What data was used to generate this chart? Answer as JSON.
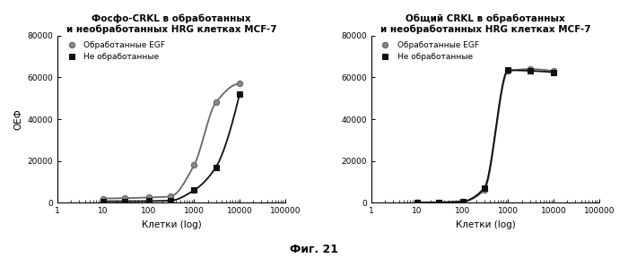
{
  "title1": "Фосфо-CRKL в обработанных\nи необработанных HRG клетках MCF-7",
  "title2": "Общий CRKL в обработанных\nи необработанных HRG клетках MCF-7",
  "xlabel": "Клетки (log)",
  "ylabel": "ОЕФ",
  "legend1": "Обработанные EGF",
  "legend2": "Не обработанные",
  "fig_label": "Фиг. 21",
  "ylim": [
    0,
    80000
  ],
  "xlim_log": [
    1,
    100000
  ],
  "chart1_egf_x": [
    10,
    30,
    100,
    300,
    1000,
    3000,
    10000
  ],
  "chart1_egf_y": [
    2000,
    2200,
    2500,
    3000,
    18000,
    48000,
    57000
  ],
  "chart1_untreated_x": [
    10,
    30,
    100,
    300,
    1000,
    3000,
    10000
  ],
  "chart1_untreated_y": [
    700,
    700,
    800,
    1000,
    6000,
    17000,
    52000
  ],
  "chart2_egf_x": [
    10,
    30,
    100,
    300,
    1000,
    3000,
    10000
  ],
  "chart2_egf_y": [
    100,
    200,
    500,
    6000,
    63000,
    64000,
    63000
  ],
  "chart2_untreated_x": [
    10,
    30,
    100,
    300,
    1000,
    3000,
    10000
  ],
  "chart2_untreated_y": [
    100,
    200,
    600,
    7000,
    63500,
    63200,
    62500
  ],
  "color_egf": "#666666",
  "color_untreated": "#111111",
  "marker_egf_face": "#888888",
  "bg_color": "#ffffff"
}
